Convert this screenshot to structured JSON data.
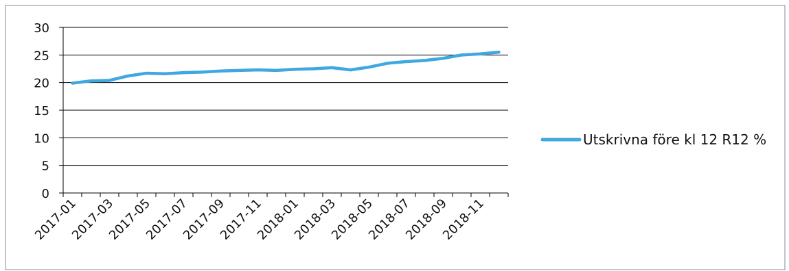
{
  "chart_data": {
    "type": "line",
    "title": "",
    "xlabel": "",
    "ylabel": "",
    "ylim": [
      0,
      30
    ],
    "yticks": [
      "0",
      "5",
      "10",
      "15",
      "20",
      "25",
      "30"
    ],
    "x": [
      "2017-01",
      "2017-02",
      "2017-03",
      "2017-04",
      "2017-05",
      "2017-06",
      "2017-07",
      "2017-08",
      "2017-09",
      "2017-10",
      "2017-11",
      "2017-12",
      "2018-01",
      "2018-02",
      "2018-03",
      "2018-04",
      "2018-05",
      "2018-06",
      "2018-07",
      "2018-08",
      "2018-09",
      "2018-10",
      "2018-11",
      "2018-12"
    ],
    "xtick_labels": [
      "2017-01",
      "2017-03",
      "2017-05",
      "2017-07",
      "2017-09",
      "2017-11",
      "2018-01",
      "2018-03",
      "2018-05",
      "2018-07",
      "2018-09",
      "2018-11"
    ],
    "grid": "horizontal",
    "legend_position": "right",
    "series": [
      {
        "name": "Utskrivna före kl 12 R12 %",
        "color": "#3fa8e0",
        "values": [
          19.9,
          20.3,
          20.4,
          21.2,
          21.7,
          21.6,
          21.8,
          21.9,
          22.1,
          22.2,
          22.3,
          22.2,
          22.4,
          22.5,
          22.7,
          22.3,
          22.8,
          23.5,
          23.8,
          24.0,
          24.4,
          25.0,
          25.2,
          25.5
        ]
      }
    ]
  }
}
